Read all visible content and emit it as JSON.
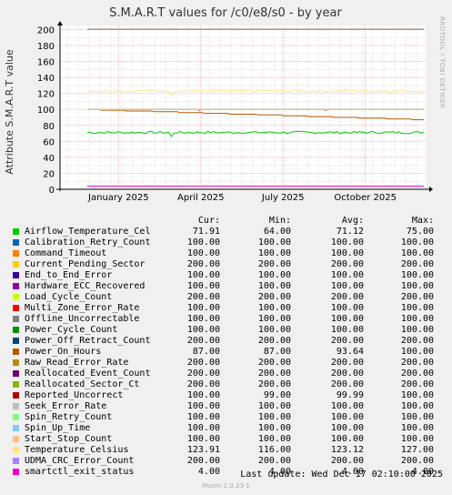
{
  "chart_data": {
    "type": "line",
    "title": "S.M.A.R.T values for /c0/e8/s0 - by year",
    "ylabel": "Attribute S.M.A.R.T value",
    "side_label": "RRDTOOL / TOBI OETIKER",
    "ylim": [
      0,
      205
    ],
    "y_ticks": [
      0,
      20,
      40,
      60,
      80,
      100,
      120,
      140,
      160,
      180,
      200
    ],
    "x_ticks": [
      "January 2025",
      "April 2025",
      "July 2025",
      "October 2025"
    ],
    "legend_headers": {
      "cur": "Cur:",
      "min": "Min:",
      "avg": "Avg:",
      "max": "Max:"
    },
    "series": [
      {
        "name": "Airflow_Temperature_Cel",
        "color": "#00cc00",
        "cur": "71.91",
        "min": "64.00",
        "avg": "71.12",
        "max": "75.00"
      },
      {
        "name": "Calibration_Retry_Count",
        "color": "#0066b3",
        "cur": "100.00",
        "min": "100.00",
        "avg": "100.00",
        "max": "100.00"
      },
      {
        "name": "Command_Timeout",
        "color": "#ff8000",
        "cur": "100.00",
        "min": "100.00",
        "avg": "100.00",
        "max": "100.00"
      },
      {
        "name": "Current_Pending_Sector",
        "color": "#ffcc00",
        "cur": "200.00",
        "min": "200.00",
        "avg": "200.00",
        "max": "200.00"
      },
      {
        "name": "End_to_End_Error",
        "color": "#330099",
        "cur": "100.00",
        "min": "100.00",
        "avg": "100.00",
        "max": "100.00"
      },
      {
        "name": "Hardware_ECC_Recovered",
        "color": "#990099",
        "cur": "100.00",
        "min": "100.00",
        "avg": "100.00",
        "max": "100.00"
      },
      {
        "name": "Load_Cycle_Count",
        "color": "#ccff00",
        "cur": "200.00",
        "min": "200.00",
        "avg": "200.00",
        "max": "200.00"
      },
      {
        "name": "Multi_Zone_Error_Rate",
        "color": "#ff0000",
        "cur": "100.00",
        "min": "100.00",
        "avg": "100.00",
        "max": "100.00"
      },
      {
        "name": "Offline_Uncorrectable",
        "color": "#808080",
        "cur": "100.00",
        "min": "100.00",
        "avg": "100.00",
        "max": "100.00"
      },
      {
        "name": "Power_Cycle_Count",
        "color": "#008f00",
        "cur": "100.00",
        "min": "100.00",
        "avg": "100.00",
        "max": "100.00"
      },
      {
        "name": "Power_Off_Retract_Count",
        "color": "#00487d",
        "cur": "200.00",
        "min": "200.00",
        "avg": "200.00",
        "max": "200.00"
      },
      {
        "name": "Power_On_Hours",
        "color": "#b35a00",
        "cur": "87.00",
        "min": "87.00",
        "avg": "93.64",
        "max": "100.00"
      },
      {
        "name": "Raw_Read_Error_Rate",
        "color": "#b38f00",
        "cur": "200.00",
        "min": "200.00",
        "avg": "200.00",
        "max": "200.00"
      },
      {
        "name": "Reallocated_Event_Count",
        "color": "#6b006b",
        "cur": "200.00",
        "min": "200.00",
        "avg": "200.00",
        "max": "200.00"
      },
      {
        "name": "Reallocated_Sector_Ct",
        "color": "#8fb300",
        "cur": "200.00",
        "min": "200.00",
        "avg": "200.00",
        "max": "200.00"
      },
      {
        "name": "Reported_Uncorrect",
        "color": "#b30000",
        "cur": "100.00",
        "min": "99.00",
        "avg": "99.99",
        "max": "100.00"
      },
      {
        "name": "Seek_Error_Rate",
        "color": "#bebebe",
        "cur": "100.00",
        "min": "100.00",
        "avg": "100.00",
        "max": "100.00"
      },
      {
        "name": "Spin_Retry_Count",
        "color": "#80ff80",
        "cur": "100.00",
        "min": "100.00",
        "avg": "100.00",
        "max": "100.00"
      },
      {
        "name": "Spin_Up_Time",
        "color": "#80c9ff",
        "cur": "100.00",
        "min": "100.00",
        "avg": "100.00",
        "max": "100.00"
      },
      {
        "name": "Start_Stop_Count",
        "color": "#ffc080",
        "cur": "100.00",
        "min": "100.00",
        "avg": "100.00",
        "max": "100.00"
      },
      {
        "name": "Temperature_Celsius",
        "color": "#ffe680",
        "cur": "123.91",
        "min": "116.00",
        "avg": "123.12",
        "max": "127.00"
      },
      {
        "name": "UDMA_CRC_Error_Count",
        "color": "#aa80ff",
        "cur": "200.00",
        "min": "200.00",
        "avg": "200.00",
        "max": "200.00"
      },
      {
        "name": "smartctl_exit_status",
        "color": "#ee00cc",
        "cur": "4.00",
        "min": "4.00",
        "avg": "4.00",
        "max": "4.00"
      }
    ],
    "last_update": "Last update:  Wed Dec 17 02:10:00 2025",
    "version": "Munin 2.0.33-1"
  }
}
